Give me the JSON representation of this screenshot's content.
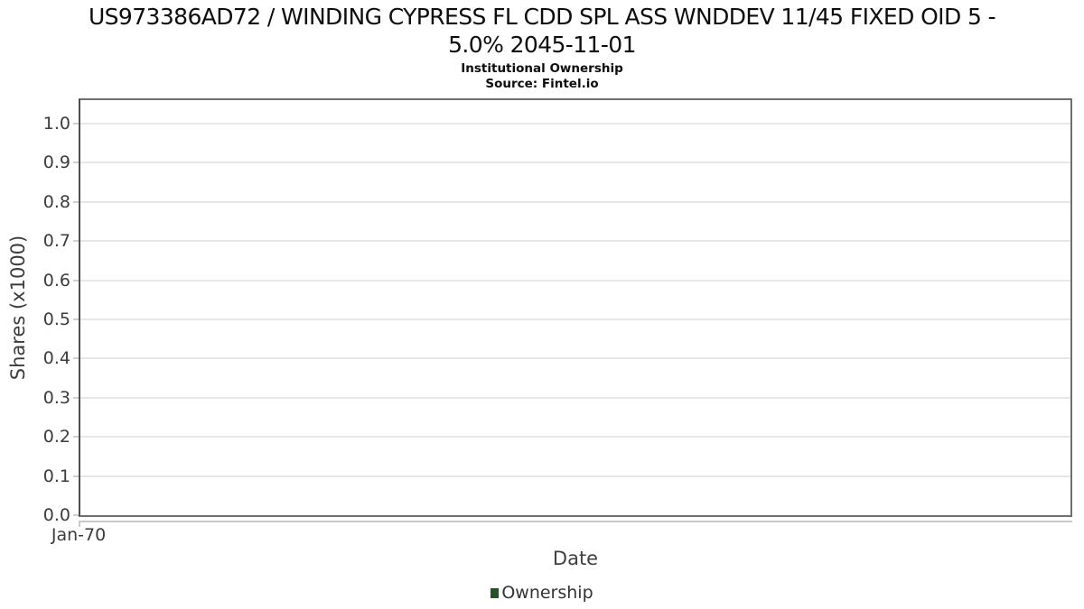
{
  "header": {
    "title_line1": "US973386AD72 / WINDING CYPRESS FL CDD SPL ASS WNDDEV 11/45 FIXED OID 5 -",
    "title_line2": "5.0% 2045-11-01",
    "subtitle": "Institutional Ownership",
    "source": "Source: Fintel.io"
  },
  "chart_data": {
    "type": "line",
    "title": "US973386AD72 / WINDING CYPRESS FL CDD SPL ASS WNDDEV 11/45 FIXED OID 5 - 5.0% 2045-11-01",
    "subtitle": "Institutional Ownership",
    "source": "Source: Fintel.io",
    "xlabel": "Date",
    "ylabel": "Shares (x1000)",
    "xticks": [
      "Jan-70"
    ],
    "yticks": [
      "0.0",
      "0.1",
      "0.2",
      "0.3",
      "0.4",
      "0.5",
      "0.6",
      "0.7",
      "0.8",
      "0.9",
      "1.0"
    ],
    "ylim": [
      0,
      1.06
    ],
    "xlim_note": "no data plotted; single x tick at left edge",
    "grid": true,
    "legend_position": "bottom-center",
    "series": [
      {
        "name": "Ownership",
        "color": "#275229",
        "x": [],
        "values": []
      }
    ],
    "colors": {
      "plot_border": "#6f6f6f",
      "y_axis_line": "#4e4e4e",
      "gridline": "#e7e7e7",
      "x_axis_line": "#c9c9c9",
      "tick_text": "#3c3c3c",
      "title_text": "#0d0d0d",
      "legend_marker": "#275229"
    }
  }
}
